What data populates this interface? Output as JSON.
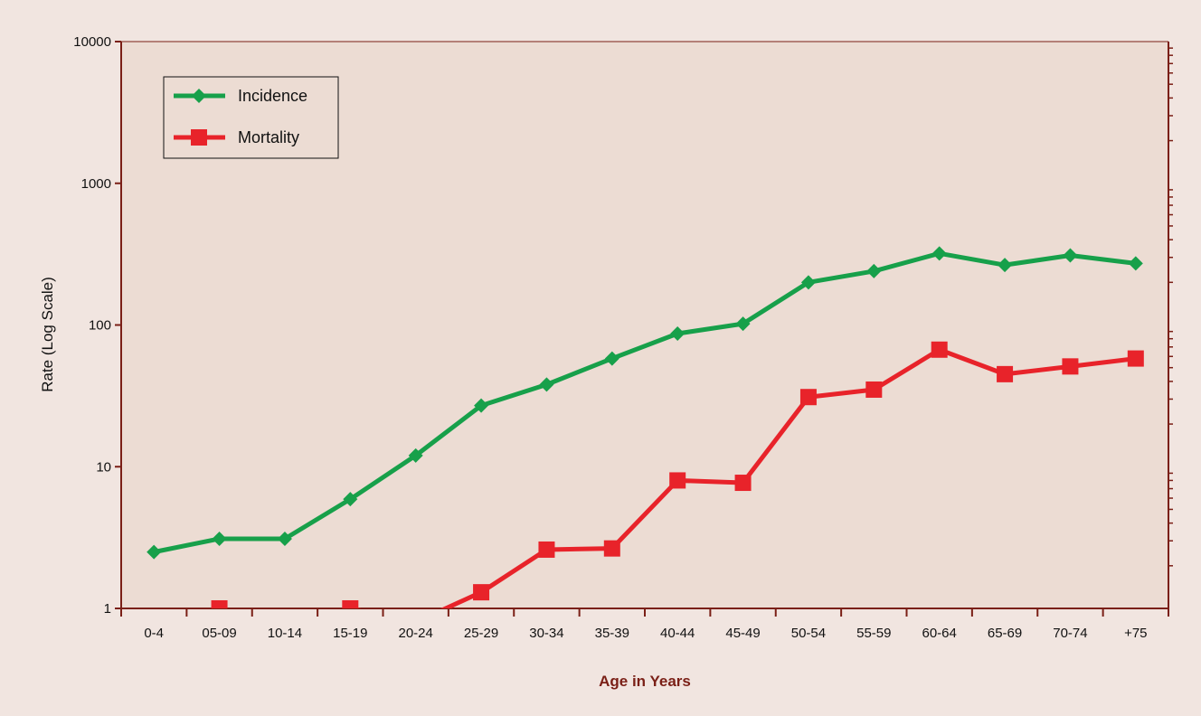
{
  "chart_data": {
    "type": "line",
    "xlabel": "Age in Years",
    "ylabel": "Rate (Log Scale)",
    "yscale": "log",
    "ylim": [
      1,
      10000
    ],
    "yticks": [
      1,
      10,
      100,
      1000,
      10000
    ],
    "ytick_labels": [
      "1",
      "10",
      "100",
      "1000",
      "10000"
    ],
    "categories": [
      "0-4",
      "05-09",
      "10-14",
      "15-19",
      "20-24",
      "25-29",
      "30-34",
      "35-39",
      "40-44",
      "45-49",
      "50-54",
      "55-59",
      "60-64",
      "65-69",
      "70-74",
      "+75"
    ],
    "grid": false,
    "legend_position": "top-left",
    "colors": {
      "page_background": "#f1e5e0",
      "plot_background": "#ecdcd3",
      "axis": "#7a1f16",
      "axis_title": "#7a1f16"
    },
    "series": [
      {
        "name": "Incidence",
        "marker": "diamond",
        "color": "#17a04a",
        "values": [
          2.5,
          3.1,
          3.1,
          5.9,
          12,
          27,
          38,
          58,
          87,
          102,
          200,
          240,
          320,
          265,
          310,
          272
        ]
      },
      {
        "name": "Mortality",
        "marker": "square",
        "color": "#e8232a",
        "values": [
          null,
          1,
          null,
          1,
          0.8,
          1.3,
          2.6,
          2.65,
          8,
          7.7,
          31,
          35,
          67,
          45,
          51,
          58
        ]
      }
    ]
  }
}
